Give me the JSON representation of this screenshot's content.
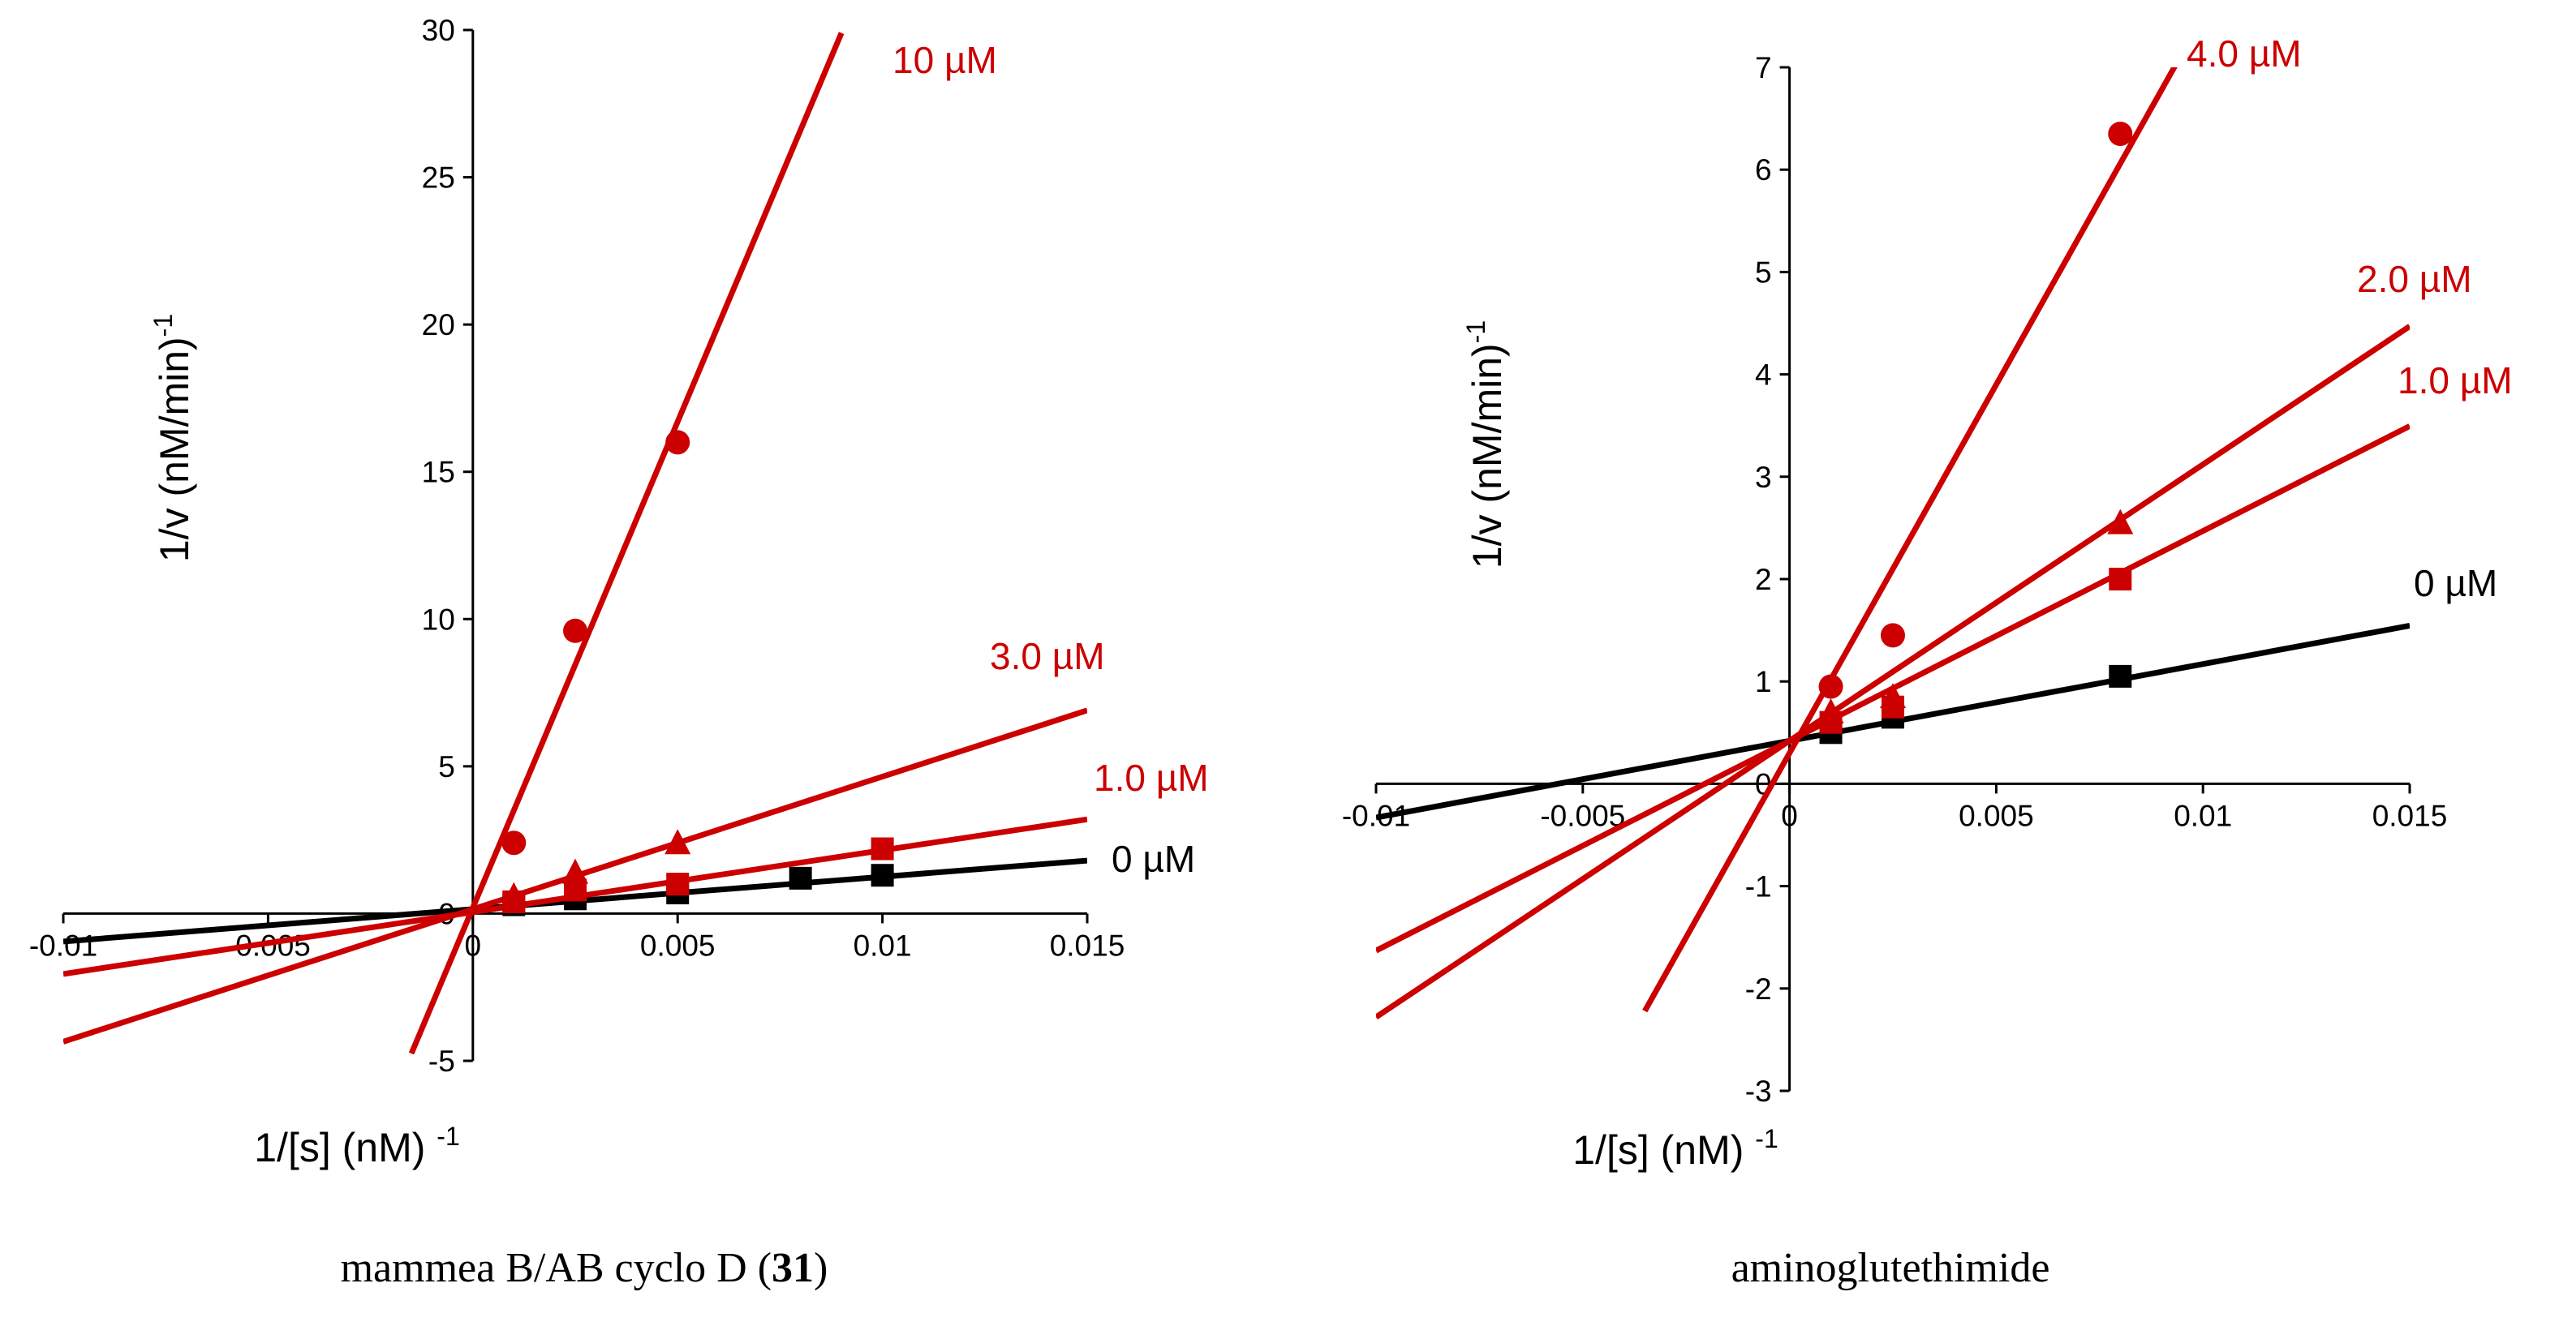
{
  "chart_data": [
    {
      "type": "line",
      "title": "",
      "caption": "mammea B/AB cyclo D (",
      "caption_bold": "31",
      "caption_end": ")",
      "xlabel": "1/[s] (nM) ",
      "xlabel_sup": "-1",
      "ylabel": "1/v (nM/min)",
      "ylabel_sup": "-1",
      "xlim": [
        -0.01,
        0.015
      ],
      "ylim": [
        -5,
        30
      ],
      "xticks": [
        -0.01,
        -0.005,
        0,
        0.005,
        0.01,
        0.015
      ],
      "xtick_labels": [
        "-0.01",
        "-0.005",
        "0",
        "0.005",
        "0.01",
        "0.015"
      ],
      "yticks": [
        -5,
        0,
        5,
        10,
        15,
        20,
        25,
        30
      ],
      "ytick_labels": [
        "-5",
        "0",
        "5",
        "10",
        "15",
        "20",
        "25",
        "30"
      ],
      "series": [
        {
          "name": "0 µM",
          "color": "#000000",
          "marker": "square",
          "slope": 110,
          "intercept": 0.15,
          "line_x": [
            -0.01,
            0.015
          ],
          "x": [
            0.001,
            0.0025,
            0.005,
            0.008,
            0.01
          ],
          "y": [
            0.3,
            0.5,
            0.7,
            1.2,
            1.3
          ]
        },
        {
          "name": "1.0 µM",
          "color": "#cc0000",
          "marker": "square",
          "slope": 210,
          "intercept": 0.05,
          "line_x": [
            -0.01,
            0.015
          ],
          "x": [
            0.001,
            0.0025,
            0.005,
            0.01
          ],
          "y": [
            0.4,
            0.8,
            1.0,
            2.2
          ]
        },
        {
          "name": "3.0 µM",
          "color": "#cc0000",
          "marker": "triangle",
          "slope": 450,
          "intercept": 0.15,
          "line_x": [
            -0.01,
            0.015
          ],
          "x": [
            0.001,
            0.0025,
            0.005
          ],
          "y": [
            0.6,
            1.4,
            2.4
          ]
        },
        {
          "name": "10 µM",
          "color": "#cc0000",
          "marker": "circle",
          "slope": 3300,
          "intercept": 0.2,
          "line_x": [
            -0.0015,
            0.009
          ],
          "x": [
            0.001,
            0.0025,
            0.005
          ],
          "y": [
            2.4,
            9.6,
            16.0
          ]
        }
      ]
    },
    {
      "type": "line",
      "title": "",
      "caption": "aminoglutethimide",
      "caption_bold": "",
      "caption_end": "",
      "xlabel": "1/[s] (nM) ",
      "xlabel_sup": "-1",
      "ylabel": "1/v (nM/min)",
      "ylabel_sup": "-1",
      "xlim": [
        -0.01,
        0.015
      ],
      "ylim": [
        -3,
        7
      ],
      "xticks": [
        -0.01,
        -0.005,
        0,
        0.005,
        0.01,
        0.015
      ],
      "xtick_labels": [
        "-0.01",
        "-0.005",
        "0",
        "0.005",
        "0.01",
        "0.015"
      ],
      "yticks": [
        -3,
        -2,
        -1,
        0,
        1,
        2,
        3,
        4,
        5,
        6,
        7
      ],
      "ytick_labels": [
        "-3",
        "-2",
        "-1",
        "0",
        "1",
        "2",
        "3",
        "4",
        "5",
        "6",
        "7"
      ],
      "series": [
        {
          "name": "0 µM",
          "color": "#000000",
          "marker": "square",
          "slope": 75,
          "intercept": 0.42,
          "line_x": [
            -0.01,
            0.015
          ],
          "x": [
            0.001,
            0.0025,
            0.008
          ],
          "y": [
            0.5,
            0.65,
            1.05
          ]
        },
        {
          "name": "1.0 µM",
          "color": "#cc0000",
          "marker": "square",
          "slope": 205,
          "intercept": 0.42,
          "line_x": [
            -0.01,
            0.015
          ],
          "x": [
            0.001,
            0.0025,
            0.008
          ],
          "y": [
            0.6,
            0.75,
            2.0
          ]
        },
        {
          "name": "2.0 µM",
          "color": "#cc0000",
          "marker": "triangle",
          "slope": 270,
          "intercept": 0.42,
          "line_x": [
            -0.01,
            0.015
          ],
          "x": [
            0.001,
            0.0025,
            0.008
          ],
          "y": [
            0.7,
            0.85,
            2.55
          ]
        },
        {
          "name": "4.0 µM",
          "color": "#cc0000",
          "marker": "circle",
          "slope": 720,
          "intercept": 0.3,
          "line_x": [
            -0.0035,
            0.0095
          ],
          "x": [
            0.001,
            0.0025,
            0.008
          ],
          "y": [
            0.95,
            1.45,
            6.35
          ]
        }
      ]
    }
  ]
}
